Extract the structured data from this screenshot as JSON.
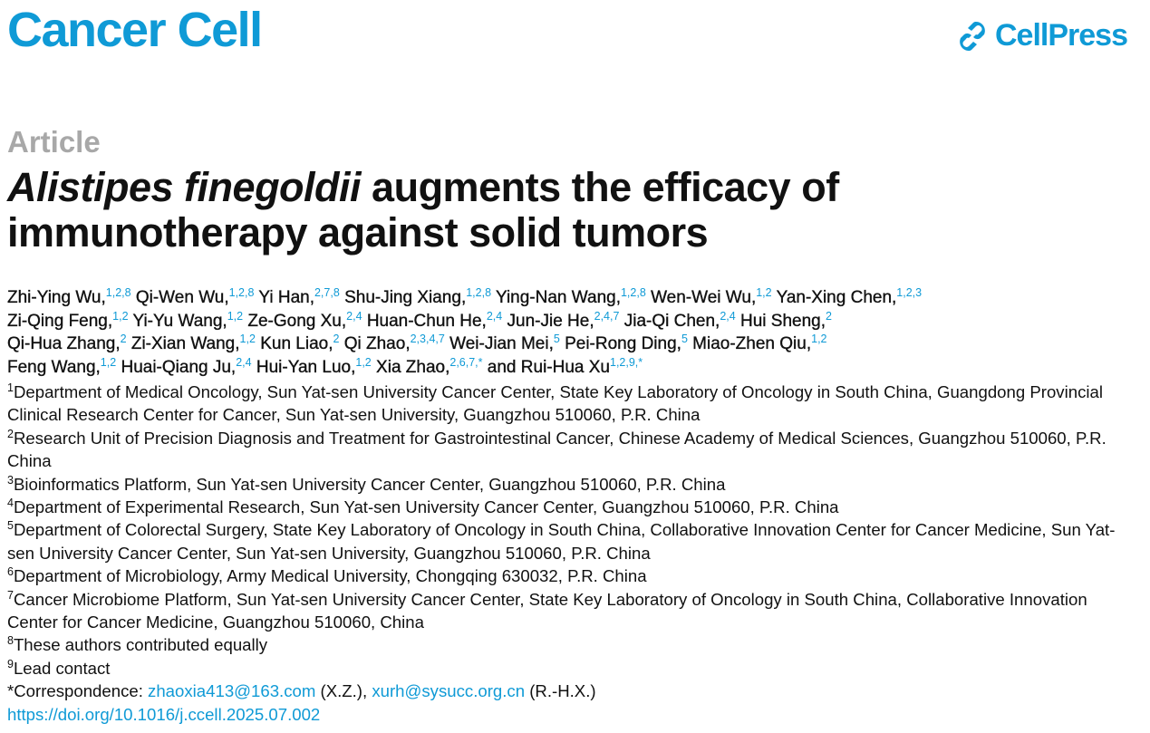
{
  "journal": "Cancer Cell",
  "publisher_logo": "CellPress",
  "colors": {
    "brand": "#0f9ad6",
    "article_type": "#a8a8a8"
  },
  "article_type": "Article",
  "title": {
    "italic": "Alistipes finegoldii",
    "rest": " augments the efficacy of immunotherapy against solid tumors"
  },
  "author_lines": [
    [
      {
        "name": "Zhi-Ying Wu,",
        "sup": "1,2,8"
      },
      {
        "name": "Qi-Wen Wu,",
        "sup": "1,2,8"
      },
      {
        "name": "Yi Han,",
        "sup": "2,7,8"
      },
      {
        "name": "Shu-Jing Xiang,",
        "sup": "1,2,8"
      },
      {
        "name": "Ying-Nan Wang,",
        "sup": "1,2,8"
      },
      {
        "name": "Wen-Wei Wu,",
        "sup": "1,2"
      },
      {
        "name": "Yan-Xing Chen,",
        "sup": "1,2,3"
      }
    ],
    [
      {
        "name": "Zi-Qing Feng,",
        "sup": "1,2"
      },
      {
        "name": "Yi-Yu Wang,",
        "sup": "1,2"
      },
      {
        "name": "Ze-Gong Xu,",
        "sup": "2,4"
      },
      {
        "name": "Huan-Chun He,",
        "sup": "2,4"
      },
      {
        "name": "Jun-Jie He,",
        "sup": "2,4,7"
      },
      {
        "name": "Jia-Qi Chen,",
        "sup": "2,4"
      },
      {
        "name": "Hui Sheng,",
        "sup": "2"
      }
    ],
    [
      {
        "name": "Qi-Hua Zhang,",
        "sup": "2"
      },
      {
        "name": "Zi-Xian Wang,",
        "sup": "1,2"
      },
      {
        "name": "Kun Liao,",
        "sup": "2"
      },
      {
        "name": "Qi Zhao,",
        "sup": "2,3,4,7"
      },
      {
        "name": "Wei-Jian Mei,",
        "sup": "5"
      },
      {
        "name": "Pei-Rong Ding,",
        "sup": "5"
      },
      {
        "name": "Miao-Zhen Qiu,",
        "sup": "1,2"
      }
    ],
    [
      {
        "name": "Feng Wang,",
        "sup": "1,2"
      },
      {
        "name": "Huai-Qiang Ju,",
        "sup": "2,4"
      },
      {
        "name": "Hui-Yan Luo,",
        "sup": "1,2"
      },
      {
        "name": "Xia Zhao,",
        "sup": "2,6,7,*"
      },
      {
        "name": "and Rui-Hua Xu",
        "sup": "1,2,9,*"
      }
    ]
  ],
  "affiliations": [
    {
      "num": "1",
      "text": "Department of Medical Oncology, Sun Yat-sen University Cancer Center, State Key Laboratory of Oncology in South China, Guangdong Provincial Clinical Research Center for Cancer, Sun Yat-sen University, Guangzhou 510060, P.R. China"
    },
    {
      "num": "2",
      "text": "Research Unit of Precision Diagnosis and Treatment for Gastrointestinal Cancer, Chinese Academy of Medical Sciences, Guangzhou 510060, P.R. China"
    },
    {
      "num": "3",
      "text": "Bioinformatics Platform, Sun Yat-sen University Cancer Center, Guangzhou 510060, P.R. China"
    },
    {
      "num": "4",
      "text": "Department of Experimental Research, Sun Yat-sen University Cancer Center, Guangzhou 510060, P.R. China"
    },
    {
      "num": "5",
      "text": "Department of Colorectal Surgery, State Key Laboratory of Oncology in South China, Collaborative Innovation Center for Cancer Medicine, Sun Yat-sen University Cancer Center, Sun Yat-sen University, Guangzhou 510060, P.R. China"
    },
    {
      "num": "6",
      "text": "Department of Microbiology, Army Medical University, Chongqing 630032, P.R. China"
    },
    {
      "num": "7",
      "text": "Cancer Microbiome Platform, Sun Yat-sen University Cancer Center, State Key Laboratory of Oncology in South China, Collaborative Innovation Center for Cancer Medicine, Guangzhou 510060, China"
    },
    {
      "num": "8",
      "text": "These authors contributed equally"
    },
    {
      "num": "9",
      "text": "Lead contact"
    }
  ],
  "correspondence": {
    "label": "*Correspondence: ",
    "email1": "zhaoxia413@163.com",
    "initials1": " (X.Z.), ",
    "email2": "xurh@sysucc.org.cn",
    "initials2": " (R.-H.X.)"
  },
  "doi": "https://doi.org/10.1016/j.ccell.2025.07.002"
}
